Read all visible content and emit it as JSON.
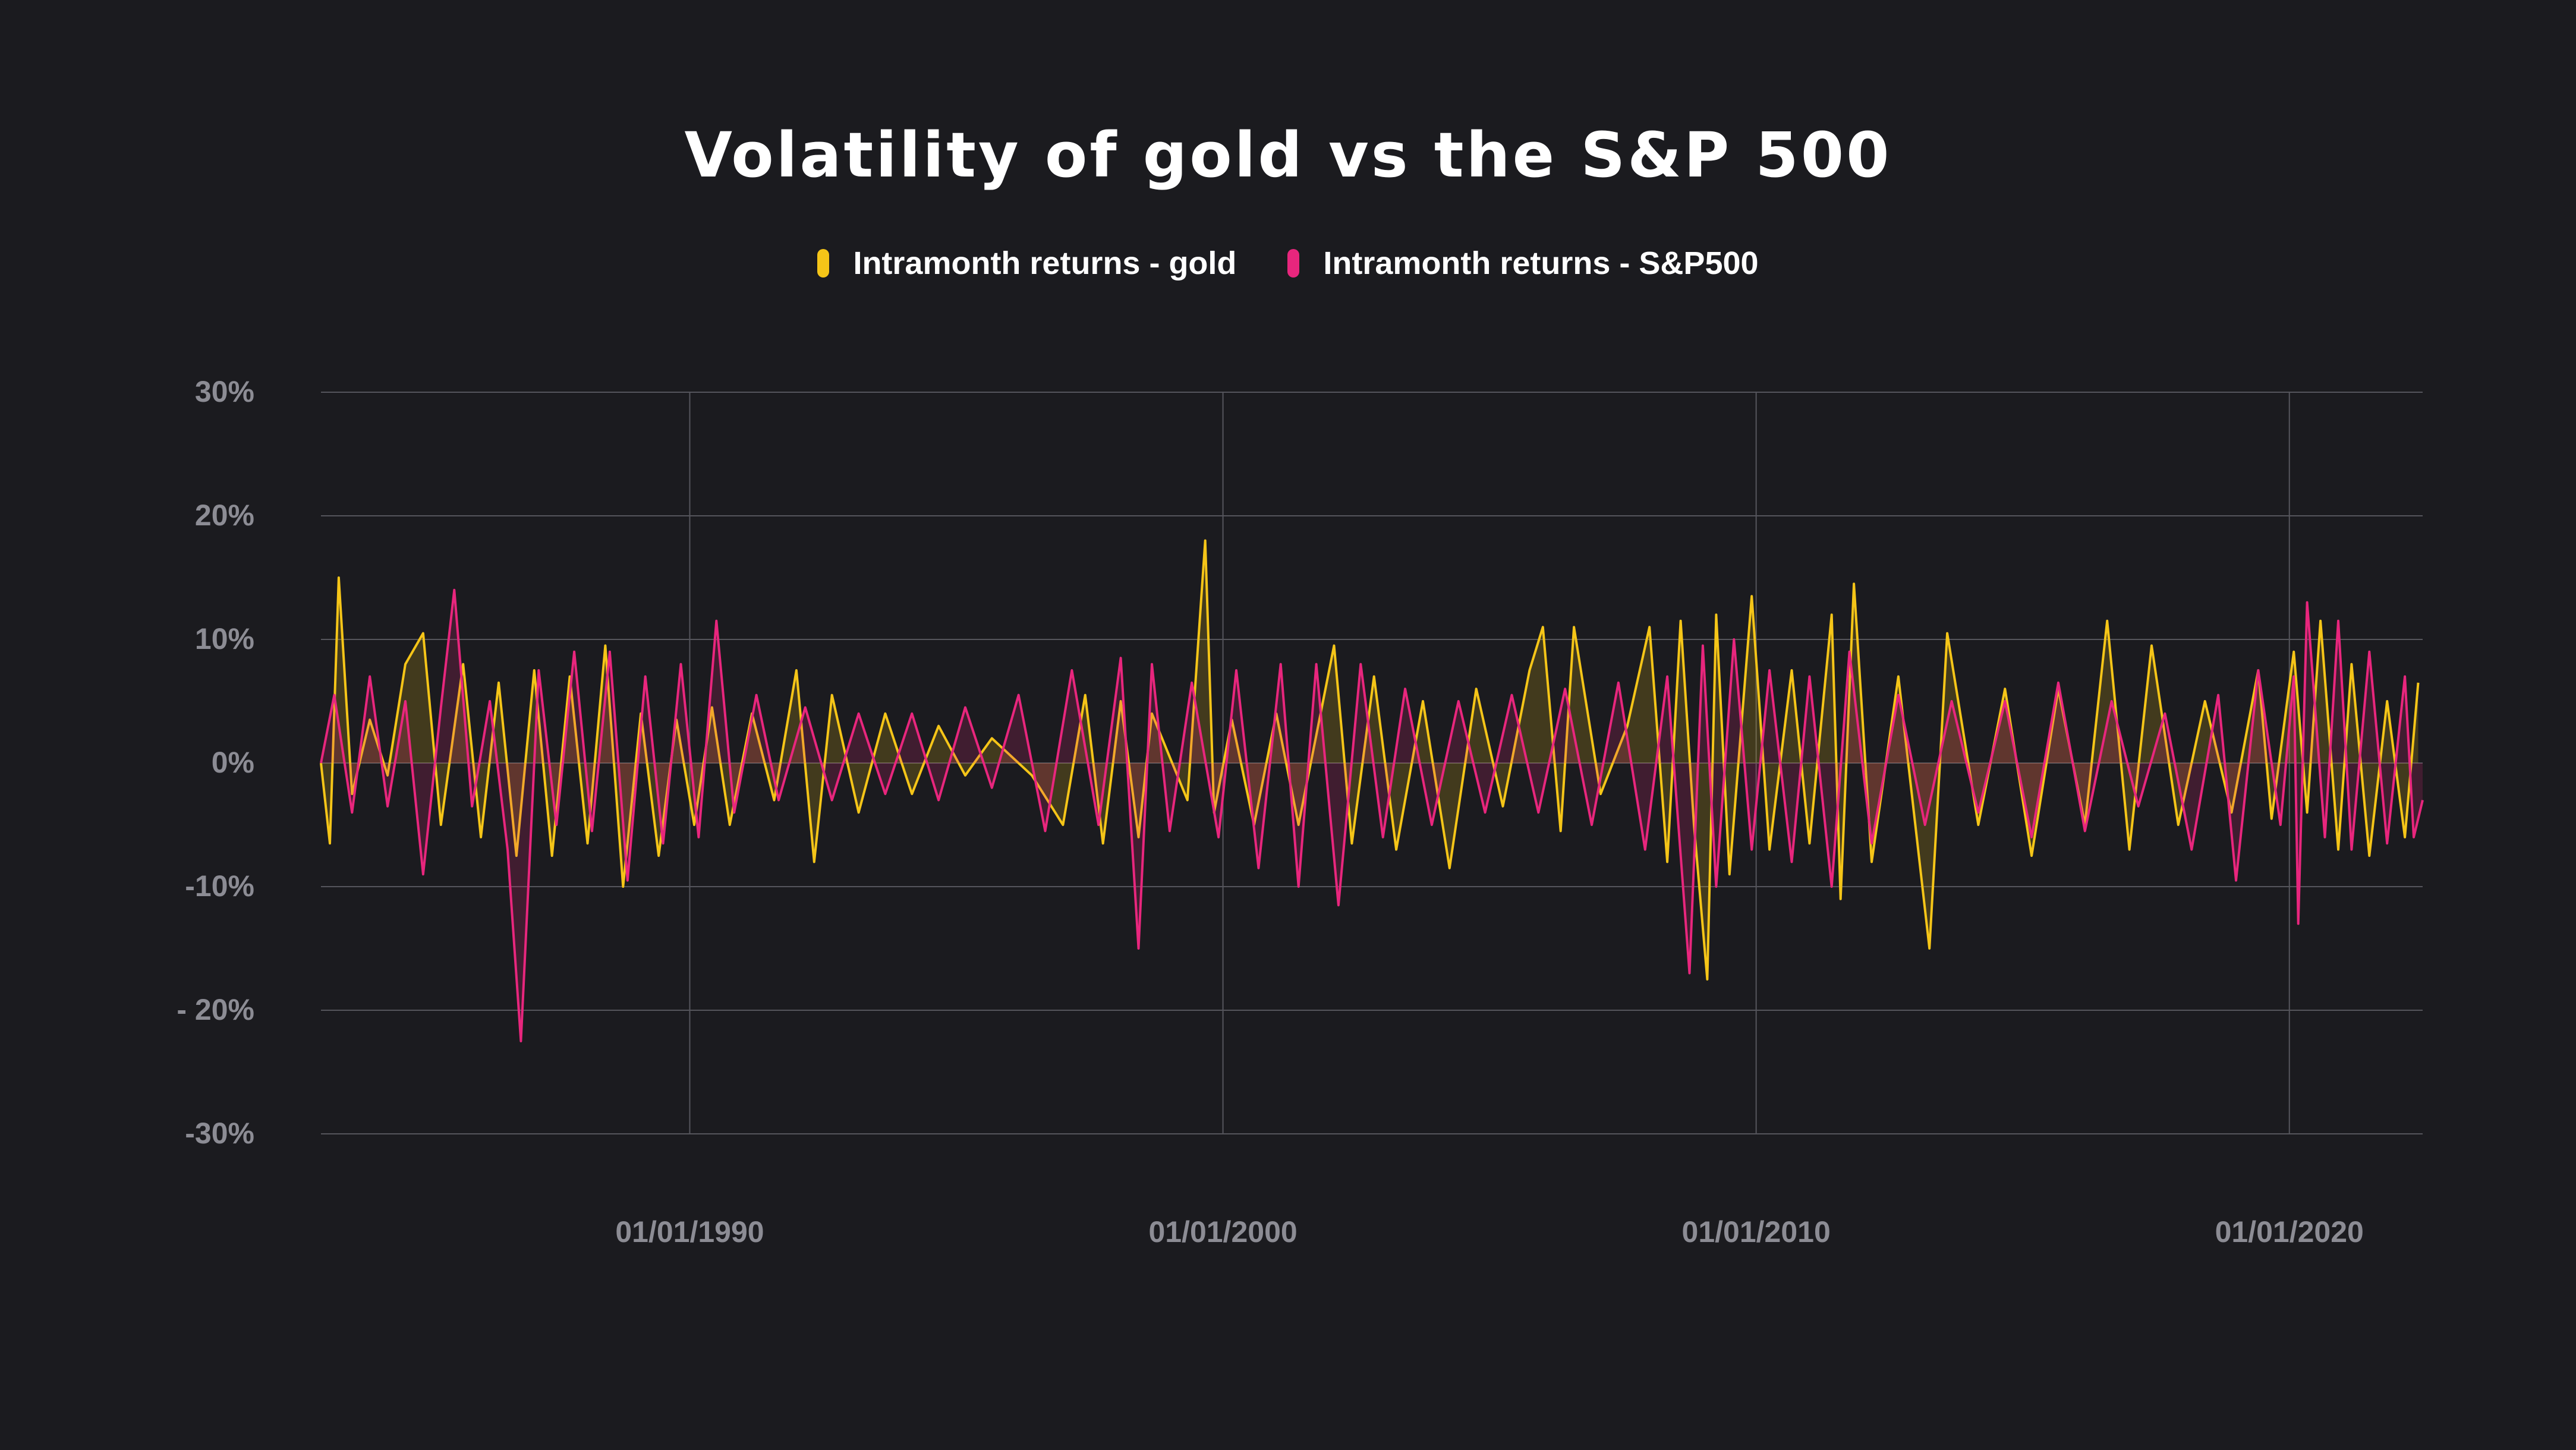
{
  "chart_data": {
    "type": "line",
    "title": "Volatility of gold vs the S&P 500",
    "xlabel": "",
    "ylabel": "",
    "ylim": [
      -30,
      30
    ],
    "xlim": [
      "1983-02-01",
      "2022-07-01"
    ],
    "y_ticks": [
      {
        "value": 30,
        "label": "30%"
      },
      {
        "value": 20,
        "label": "20%"
      },
      {
        "value": 10,
        "label": "10%"
      },
      {
        "value": 0,
        "label": "0%"
      },
      {
        "value": -10,
        "label": "-10%"
      },
      {
        "value": -20,
        "label": "- 20%"
      },
      {
        "value": -30,
        "label": "-30%"
      }
    ],
    "x_ticks": [
      {
        "value": "1990-01-01",
        "label": "01/01/1990"
      },
      {
        "value": "2000-01-01",
        "label": "01/01/2000"
      },
      {
        "value": "2010-01-01",
        "label": "01/01/2010"
      },
      {
        "value": "2020-01-01",
        "label": "01/01/2020"
      }
    ],
    "grid": {
      "horizontal": true,
      "vertical": true
    },
    "legend_position": "top-center",
    "series": [
      {
        "name": "Intramonth returns - gold",
        "color": "#f5c518",
        "points": [
          [
            "1983-02",
            0
          ],
          [
            "1983-04",
            -6.5
          ],
          [
            "1983-06",
            15
          ],
          [
            "1983-09",
            -2.5
          ],
          [
            "1984-01",
            3.5
          ],
          [
            "1984-05",
            -1
          ],
          [
            "1984-09",
            8
          ],
          [
            "1985-01",
            10.5
          ],
          [
            "1985-05",
            -5
          ],
          [
            "1985-10",
            8
          ],
          [
            "1986-02",
            -6
          ],
          [
            "1986-06",
            6.5
          ],
          [
            "1986-10",
            -7.5
          ],
          [
            "1987-02",
            7.5
          ],
          [
            "1987-06",
            -7.5
          ],
          [
            "1987-10",
            7
          ],
          [
            "1988-02",
            -6.5
          ],
          [
            "1988-06",
            9.5
          ],
          [
            "1988-10",
            -10
          ],
          [
            "1989-02",
            4
          ],
          [
            "1989-06",
            -7.5
          ],
          [
            "1989-10",
            3.5
          ],
          [
            "1990-02",
            -5
          ],
          [
            "1990-06",
            4.5
          ],
          [
            "1990-10",
            -5
          ],
          [
            "1991-03",
            4
          ],
          [
            "1991-08",
            -3
          ],
          [
            "1992-01",
            7.5
          ],
          [
            "1992-05",
            -8
          ],
          [
            "1992-09",
            5.5
          ],
          [
            "1993-03",
            -4
          ],
          [
            "1993-09",
            4
          ],
          [
            "1994-03",
            -2.5
          ],
          [
            "1994-09",
            3
          ],
          [
            "1995-03",
            -1
          ],
          [
            "1995-09",
            2
          ],
          [
            "1996-06",
            -1
          ],
          [
            "1997-01",
            -5
          ],
          [
            "1997-06",
            5.5
          ],
          [
            "1997-10",
            -6.5
          ],
          [
            "1998-02",
            5
          ],
          [
            "1998-06",
            -6
          ],
          [
            "1998-09",
            4
          ],
          [
            "1999-05",
            -3
          ],
          [
            "1999-09",
            18
          ],
          [
            "1999-11",
            -4
          ],
          [
            "2000-03",
            3.5
          ],
          [
            "2000-08",
            -5
          ],
          [
            "2001-01",
            4
          ],
          [
            "2001-06",
            -5
          ],
          [
            "2002-02",
            9.5
          ],
          [
            "2002-06",
            -6.5
          ],
          [
            "2002-11",
            7
          ],
          [
            "2003-04",
            -7
          ],
          [
            "2003-10",
            5
          ],
          [
            "2004-04",
            -8.5
          ],
          [
            "2004-10",
            6
          ],
          [
            "2005-04",
            -3.5
          ],
          [
            "2005-10",
            7.5
          ],
          [
            "2006-01",
            11
          ],
          [
            "2006-05",
            -5.5
          ],
          [
            "2006-08",
            11
          ],
          [
            "2007-02",
            -2.5
          ],
          [
            "2007-08",
            3
          ],
          [
            "2008-01",
            11
          ],
          [
            "2008-05",
            -8
          ],
          [
            "2008-08",
            11.5
          ],
          [
            "2008-11",
            -5
          ],
          [
            "2009-02",
            -17.5
          ],
          [
            "2009-04",
            12
          ],
          [
            "2009-07",
            -9
          ],
          [
            "2009-12",
            13.5
          ],
          [
            "2010-04",
            -7
          ],
          [
            "2010-09",
            7.5
          ],
          [
            "2011-01",
            -6.5
          ],
          [
            "2011-06",
            12
          ],
          [
            "2011-08",
            -11
          ],
          [
            "2011-11",
            14.5
          ],
          [
            "2012-03",
            -8
          ],
          [
            "2012-09",
            7
          ],
          [
            "2013-04",
            -15
          ],
          [
            "2013-08",
            10.5
          ],
          [
            "2014-03",
            -5
          ],
          [
            "2014-09",
            6
          ],
          [
            "2015-03",
            -7.5
          ],
          [
            "2015-09",
            6
          ],
          [
            "2016-03",
            -5
          ],
          [
            "2016-08",
            11.5
          ],
          [
            "2017-01",
            -7
          ],
          [
            "2017-06",
            9.5
          ],
          [
            "2017-12",
            -5
          ],
          [
            "2018-06",
            5
          ],
          [
            "2018-12",
            -4
          ],
          [
            "2019-06",
            7.5
          ],
          [
            "2019-09",
            -4.5
          ],
          [
            "2020-02",
            9
          ],
          [
            "2020-05",
            -4
          ],
          [
            "2020-08",
            11.5
          ],
          [
            "2020-12",
            -7
          ],
          [
            "2021-03",
            8
          ],
          [
            "2021-07",
            -7.5
          ],
          [
            "2021-11",
            5
          ],
          [
            "2022-03",
            -6
          ],
          [
            "2022-06",
            6.5
          ]
        ]
      },
      {
        "name": "Intramonth returns - S&P500",
        "color": "#e8267d",
        "points": [
          [
            "1983-02",
            0
          ],
          [
            "1983-05",
            5.5
          ],
          [
            "1983-09",
            -4
          ],
          [
            "1984-01",
            7
          ],
          [
            "1984-05",
            -3.5
          ],
          [
            "1984-09",
            5
          ],
          [
            "1985-01",
            -9
          ],
          [
            "1985-05",
            4.5
          ],
          [
            "1985-08",
            14
          ],
          [
            "1985-12",
            -3.5
          ],
          [
            "1986-04",
            5
          ],
          [
            "1986-08",
            -7
          ],
          [
            "1986-11",
            -22.5
          ],
          [
            "1987-03",
            7.5
          ],
          [
            "1987-07",
            -5
          ],
          [
            "1987-11",
            9
          ],
          [
            "1988-03",
            -5.5
          ],
          [
            "1988-07",
            9
          ],
          [
            "1988-11",
            -9.5
          ],
          [
            "1989-03",
            7
          ],
          [
            "1989-07",
            -6.5
          ],
          [
            "1989-11",
            8
          ],
          [
            "1990-03",
            -6
          ],
          [
            "1990-07",
            11.5
          ],
          [
            "1990-11",
            -4
          ],
          [
            "1991-04",
            5.5
          ],
          [
            "1991-09",
            -3
          ],
          [
            "1992-03",
            4.5
          ],
          [
            "1992-09",
            -3
          ],
          [
            "1993-03",
            4
          ],
          [
            "1993-09",
            -2.5
          ],
          [
            "1994-03",
            4
          ],
          [
            "1994-09",
            -3
          ],
          [
            "1995-03",
            4.5
          ],
          [
            "1995-09",
            -2
          ],
          [
            "1996-03",
            5.5
          ],
          [
            "1996-09",
            -5.5
          ],
          [
            "1997-03",
            7.5
          ],
          [
            "1997-09",
            -5
          ],
          [
            "1998-02",
            8.5
          ],
          [
            "1998-06",
            -15
          ],
          [
            "1998-09",
            8
          ],
          [
            "1999-01",
            -5.5
          ],
          [
            "1999-06",
            6.5
          ],
          [
            "1999-12",
            -6
          ],
          [
            "2000-04",
            7.5
          ],
          [
            "2000-09",
            -8.5
          ],
          [
            "2001-02",
            8
          ],
          [
            "2001-06",
            -10
          ],
          [
            "2001-10",
            8
          ],
          [
            "2002-03",
            -11.5
          ],
          [
            "2002-08",
            8
          ],
          [
            "2003-01",
            -6
          ],
          [
            "2003-06",
            6
          ],
          [
            "2003-12",
            -5
          ],
          [
            "2004-06",
            5
          ],
          [
            "2004-12",
            -4
          ],
          [
            "2005-06",
            5.5
          ],
          [
            "2005-12",
            -4
          ],
          [
            "2006-06",
            6
          ],
          [
            "2006-12",
            -5
          ],
          [
            "2007-06",
            6.5
          ],
          [
            "2007-12",
            -7
          ],
          [
            "2008-05",
            7
          ],
          [
            "2008-10",
            -17
          ],
          [
            "2009-01",
            9.5
          ],
          [
            "2009-04",
            -10
          ],
          [
            "2009-08",
            10
          ],
          [
            "2009-12",
            -7
          ],
          [
            "2010-04",
            7.5
          ],
          [
            "2010-09",
            -8
          ],
          [
            "2011-01",
            7
          ],
          [
            "2011-06",
            -10
          ],
          [
            "2011-10",
            9
          ],
          [
            "2012-03",
            -6.5
          ],
          [
            "2012-09",
            5.5
          ],
          [
            "2013-03",
            -5
          ],
          [
            "2013-09",
            5
          ],
          [
            "2014-03",
            -4
          ],
          [
            "2014-09",
            5
          ],
          [
            "2015-03",
            -6
          ],
          [
            "2015-09",
            6.5
          ],
          [
            "2016-03",
            -5.5
          ],
          [
            "2016-09",
            5
          ],
          [
            "2017-03",
            -3.5
          ],
          [
            "2017-09",
            4
          ],
          [
            "2018-03",
            -7
          ],
          [
            "2018-09",
            5.5
          ],
          [
            "2019-01",
            -9.5
          ],
          [
            "2019-06",
            7.5
          ],
          [
            "2019-11",
            -5
          ],
          [
            "2020-02",
            7
          ],
          [
            "2020-03",
            -13
          ],
          [
            "2020-05",
            13
          ],
          [
            "2020-09",
            -6
          ],
          [
            "2020-12",
            11.5
          ],
          [
            "2021-03",
            -7
          ],
          [
            "2021-07",
            9
          ],
          [
            "2021-11",
            -6.5
          ],
          [
            "2022-03",
            7
          ],
          [
            "2022-05",
            -6
          ],
          [
            "2022-07",
            -3
          ]
        ]
      }
    ]
  }
}
